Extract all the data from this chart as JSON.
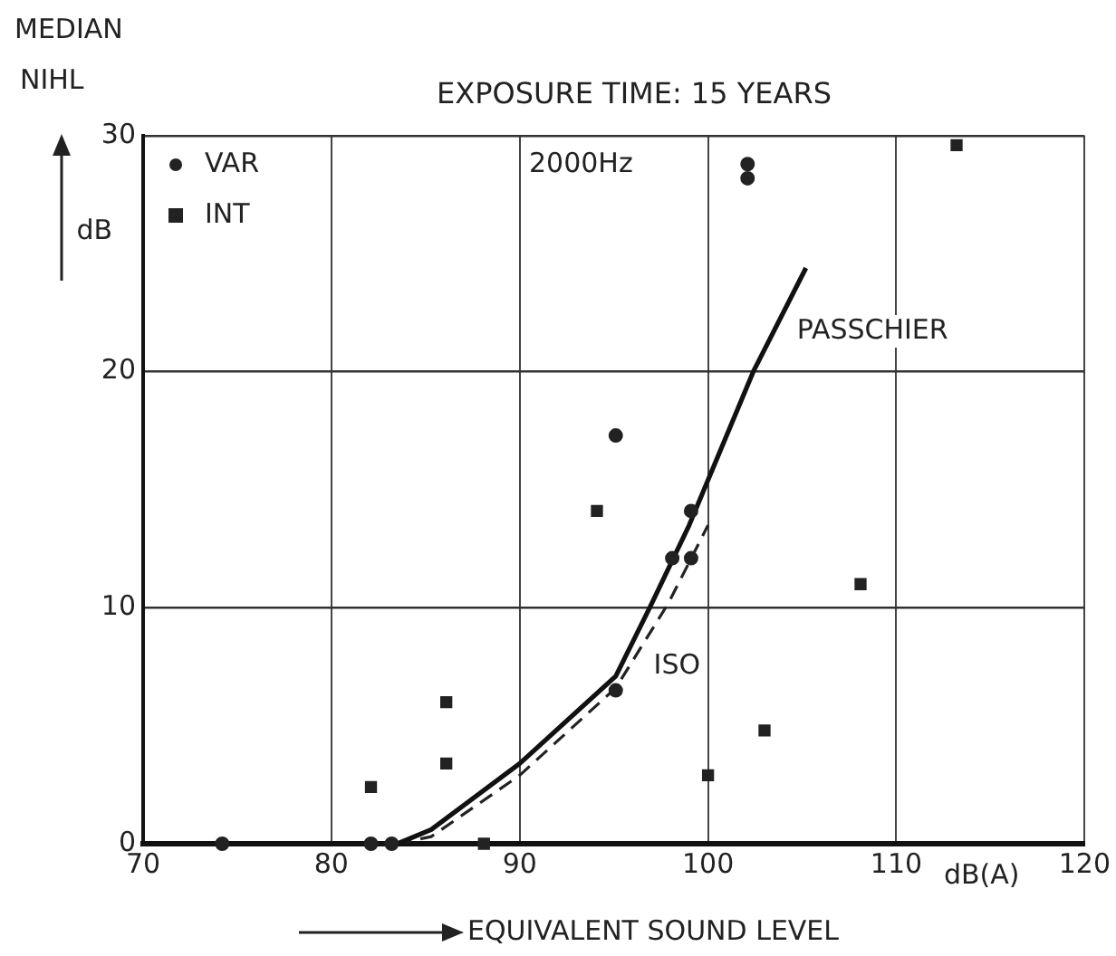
{
  "chart_data": {
    "type": "scatter",
    "title": "EXPOSURE TIME: 15 YEARS",
    "xlabel": "EQUIVALENT SOUND LEVEL",
    "ylabel": "MEDIAN NIHL",
    "annotations": [
      "2000Hz",
      "dB",
      "dB(A)"
    ],
    "xlim": [
      70,
      120
    ],
    "xticks": [
      70,
      80,
      90,
      100,
      110,
      120
    ],
    "ylim": [
      0,
      30
    ],
    "yticks": [
      0,
      10,
      20,
      30
    ],
    "grid": true,
    "legend": "top left",
    "series": [
      {
        "name": "VAR",
        "marker": "circle",
        "color": "#222222",
        "x": [
          74.2,
          82.1,
          83.2,
          95.1,
          95.1,
          98.1,
          99.1,
          99.1,
          102.1,
          102.1
        ],
        "values": [
          0,
          0,
          0,
          6.5,
          17.3,
          12.1,
          12.1,
          14.1,
          28.8,
          28.2
        ]
      },
      {
        "name": "INT",
        "marker": "square",
        "color": "#222222",
        "x": [
          82.1,
          86.1,
          86.1,
          88.1,
          94.1,
          100,
          103,
          108.1,
          113.2
        ],
        "values": [
          2.4,
          6,
          3.4,
          0,
          14.1,
          2.9,
          4.8,
          11,
          29.6
        ]
      },
      {
        "name": "PASSCHIER",
        "type": "line",
        "marker": "none",
        "line_style": "solid",
        "color": "#111111",
        "x": [
          70,
          83.5,
          85.3,
          90,
          95.1,
          96.9,
          99,
          102.4,
          105.2
        ],
        "values": [
          0,
          0,
          0.6,
          3.4,
          7.1,
          10,
          13.5,
          20,
          24.4
        ]
      },
      {
        "name": "ISO",
        "type": "line",
        "marker": "none",
        "line_style": "dashed",
        "color": "#222222",
        "x": [
          83.5,
          85.3,
          90,
          95.1,
          97.9,
          100
        ],
        "values": [
          0,
          0.3,
          2.9,
          6.6,
          10.2,
          13.5
        ]
      }
    ]
  }
}
